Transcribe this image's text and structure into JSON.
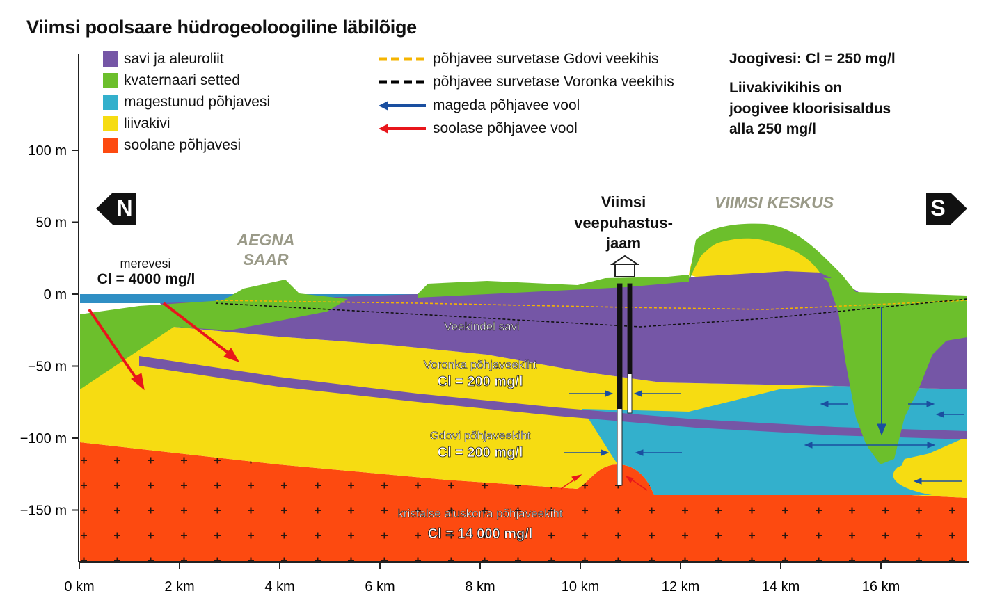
{
  "title": "Viimsi poolsaare hüdrogeoloogiline läbilõige",
  "legend": [
    {
      "label": "savi ja aleuroliit",
      "color": "#7556a6"
    },
    {
      "label": "kvaternaari setted",
      "color": "#6cbf2c"
    },
    {
      "label": "magestunud põhjavesi",
      "color": "#33b0cc"
    },
    {
      "label": "liivakivi",
      "color": "#f6dc12"
    },
    {
      "label": "soolane põhjavesi",
      "color": "#fd4a10"
    }
  ],
  "line_legend": [
    {
      "label": "põhjavee survetase Gdovi veekihis",
      "color": "#f5b400",
      "kind": "dashed-line"
    },
    {
      "label": "põhjavee survetase Voronka veekihis",
      "color": "#000000",
      "kind": "dashed-line"
    },
    {
      "label": "mageda põhjavee vool",
      "color": "#1a4fa0",
      "kind": "arrow"
    },
    {
      "label": "soolase põhjavee vool",
      "color": "#e8161b",
      "kind": "arrow"
    }
  ],
  "notes": {
    "joogivesi": "Joogivesi: Cl = 250 mg/l",
    "liivakivi_line1": "Liivakivikihis on",
    "liivakivi_line2": "joogivee kloorisisaldus",
    "liivakivi_line3": "alla 250 mg/l"
  },
  "y_axis": {
    "ticks": [
      "100 m",
      "50 m",
      "0 m",
      "−50 m",
      "−100 m",
      "−150 m"
    ],
    "values": [
      100,
      50,
      0,
      -50,
      -100,
      -150
    ]
  },
  "x_axis": {
    "ticks": [
      "0 km",
      "2 km",
      "4 km",
      "6 km",
      "8 km",
      "10 km",
      "12 km",
      "14 km",
      "16 km"
    ],
    "values": [
      0,
      2,
      4,
      6,
      8,
      10,
      12,
      14,
      16
    ]
  },
  "labels": {
    "north": "N",
    "south": "S",
    "merevesi": "merevesi",
    "merevesi_cl": "Cl = 4000 mg/l",
    "aegna_1": "AEGNA",
    "aegna_2": "SAAR",
    "station_1": "Viimsi",
    "station_2": "veepuhastus-",
    "station_3": "jaam",
    "keskus": "VIIMSI KESKUS",
    "veekindel": "Veekindel savi",
    "voronka": "Voronka põhjaveekiht",
    "voronka_cl": "Cl = 200 mg/l",
    "gdovi": "Gdovi põhjaveekiht",
    "gdovi_cl": "Cl = 200 mg/l",
    "kristalse": "kristalse aluskorra põhjaveekiht",
    "kristalse_cl": "Cl = 14 000 mg/l"
  },
  "colors": {
    "sea": "#2f8fc4",
    "clay": "#7556a6",
    "quaternary": "#6cbf2c",
    "fresh": "#33b0cc",
    "sandstone": "#f6dc12",
    "saline": "#fd4a10",
    "place_label": "#9a9a88"
  }
}
